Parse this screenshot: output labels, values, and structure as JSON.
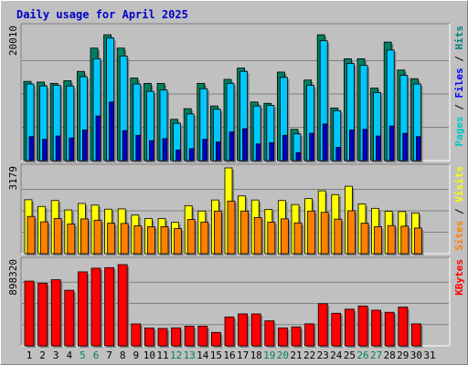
{
  "chart_data": {
    "type": "bar",
    "title": "Daily usage for April 2025",
    "categories": [
      "1",
      "2",
      "3",
      "4",
      "5",
      "6",
      "7",
      "8",
      "9",
      "10",
      "11",
      "12",
      "13",
      "14",
      "15",
      "16",
      "17",
      "18",
      "19",
      "20",
      "21",
      "22",
      "23",
      "24",
      "25",
      "26",
      "27",
      "28",
      "29",
      "30",
      "31"
    ],
    "weekend_days": [
      5,
      6,
      12,
      13,
      19,
      20,
      26,
      27
    ],
    "panels": [
      {
        "id": "top",
        "ymax_label": "20010",
        "ylim": [
          0,
          20010
        ],
        "side_labels": [
          {
            "text": "Pages",
            "color": "#00c8c8"
          },
          {
            "text": " / ",
            "color": "#000000"
          },
          {
            "text": "Files",
            "color": "#0000ff"
          },
          {
            "text": " / ",
            "color": "#000000"
          },
          {
            "text": "Hits",
            "color": "#008080"
          }
        ],
        "series": [
          {
            "name": "Hits",
            "color": "#008060",
            "values": [
              11900,
              11800,
              11600,
              12000,
              13400,
              16900,
              18900,
              16900,
              12400,
              11600,
              11600,
              6200,
              7800,
              11600,
              8200,
              12200,
              13900,
              8800,
              8600,
              13300,
              4700,
              12100,
              18900,
              7900,
              15300,
              15300,
              10900,
              17800,
              13600,
              12300,
              0
            ]
          },
          {
            "name": "Files",
            "color": "#00c8ff",
            "values": [
              11500,
              11200,
              11300,
              11200,
              12600,
              15300,
              18400,
              15700,
              11500,
              10400,
              10600,
              5600,
              7000,
              10800,
              7700,
              11600,
              13400,
              8200,
              8300,
              12500,
              4000,
              11300,
              18000,
              7500,
              14600,
              14300,
              10200,
              16600,
              12800,
              11500,
              0
            ]
          },
          {
            "name": "Pages",
            "color": "#0000c8",
            "values": [
              3600,
              3200,
              3700,
              3400,
              4600,
              6700,
              8800,
              4500,
              3800,
              3000,
              3300,
              1600,
              1800,
              3200,
              2800,
              4300,
              4800,
              2500,
              2700,
              3800,
              1200,
              4100,
              5500,
              2000,
              4600,
              4700,
              3700,
              5200,
              4100,
              3600,
              0
            ]
          }
        ]
      },
      {
        "id": "mid",
        "ymax_label": "3179",
        "ylim": [
          0,
          3179
        ],
        "side_labels": [
          {
            "text": "Sites",
            "color": "#ff8000"
          },
          {
            "text": " / ",
            "color": "#000000"
          },
          {
            "text": "Visits",
            "color": "#ffff00"
          }
        ],
        "series": [
          {
            "name": "Visits",
            "color": "#ffff00",
            "values": [
              2000,
              1750,
              1970,
              1620,
              1860,
              1800,
              1650,
              1660,
              1430,
              1300,
              1300,
              1160,
              1780,
              1580,
              1990,
              3179,
              2140,
              1990,
              1640,
              1970,
              1820,
              2040,
              2330,
              2190,
              2500,
              1840,
              1680,
              1570,
              1560,
              1510,
              0
            ]
          },
          {
            "name": "Sites",
            "color": "#ff8000",
            "values": [
              1380,
              1180,
              1300,
              1100,
              1290,
              1240,
              1130,
              1120,
              1030,
              1000,
              1000,
              930,
              1270,
              1170,
              1580,
              1950,
              1580,
              1340,
              1170,
              1290,
              1140,
              1580,
              1530,
              1280,
              1590,
              1130,
              1000,
              1040,
              1020,
              950,
              0
            ]
          }
        ]
      },
      {
        "id": "bot",
        "ymax_label": "898320",
        "ylim": [
          0,
          898320
        ],
        "side_labels": [
          {
            "text": "KBytes",
            "color": "#ff0000"
          }
        ],
        "series": [
          {
            "name": "KBytes",
            "color": "#ff0000",
            "values": [
              685000,
              663000,
              700000,
              588000,
              783000,
              822000,
              828000,
              860000,
              232000,
              188000,
              184000,
              190000,
              208000,
              208000,
              142000,
              306000,
              338000,
              338000,
              265000,
              190000,
              200000,
              233000,
              446000,
              345000,
              388000,
              422000,
              377000,
              355000,
              410000,
              233000,
              0
            ]
          }
        ]
      }
    ]
  }
}
